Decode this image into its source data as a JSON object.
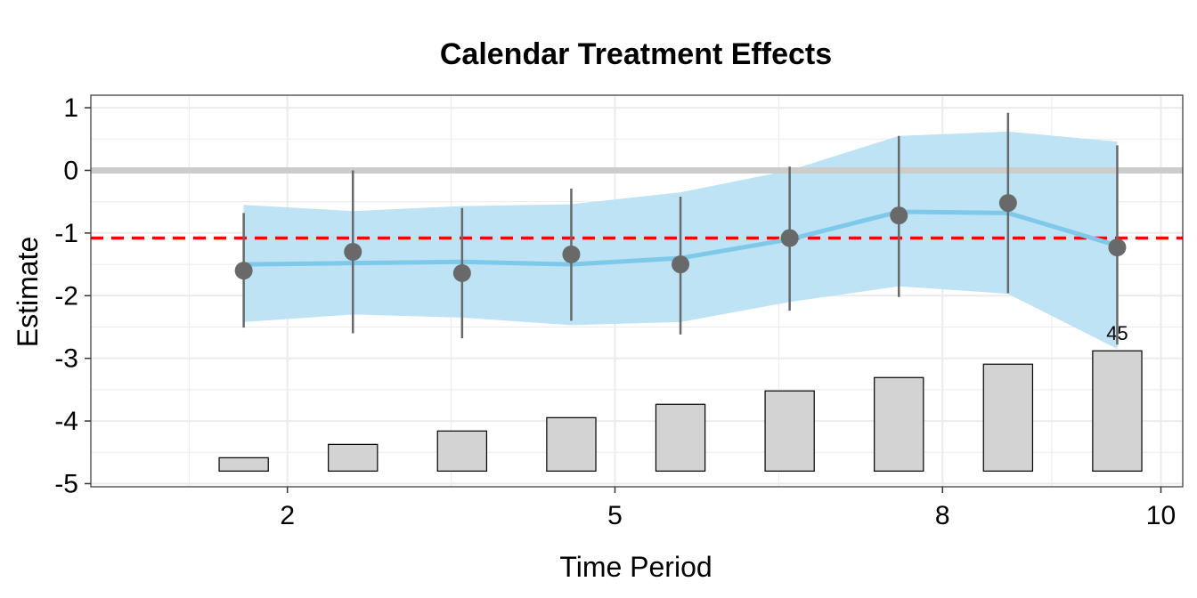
{
  "chart_data": {
    "type": "line",
    "title": "Calendar Treatment Effects",
    "xlabel": "Time Period",
    "ylabel": "Estimate",
    "xlim": [
      0.2,
      10.2
    ],
    "ylim": [
      -5.05,
      1.2
    ],
    "x_ticks": [
      2,
      5,
      8,
      10
    ],
    "x_tick_labels": [
      "2",
      "5",
      "8",
      "10"
    ],
    "y_ticks": [
      -5,
      -4,
      -3,
      -2,
      -1,
      0,
      1
    ],
    "y_tick_labels": [
      "-5",
      "-4",
      "-3",
      "-2",
      "-1",
      "0",
      "1"
    ],
    "grid": true,
    "reference_line_y": 0,
    "average_effect_line_y": -1.08,
    "series": [
      {
        "type": "line",
        "x": [
          1.6,
          2.6,
          3.6,
          4.6,
          5.6,
          6.6,
          7.6,
          8.6,
          9.6
        ],
        "values": [
          -1.5,
          -1.48,
          -1.46,
          -1.5,
          -1.4,
          -1.1,
          -0.66,
          -0.68,
          -1.2
        ]
      },
      {
        "type": "band",
        "x": [
          1.6,
          2.6,
          3.6,
          4.6,
          5.6,
          6.6,
          7.6,
          8.6,
          9.6
        ],
        "lower": [
          -2.42,
          -2.3,
          -2.35,
          -2.47,
          -2.42,
          -2.1,
          -1.85,
          -1.97,
          -2.85
        ],
        "upper": [
          -0.55,
          -0.65,
          -0.57,
          -0.54,
          -0.35,
          0.0,
          0.55,
          0.62,
          0.46
        ]
      },
      {
        "type": "scatter",
        "x": [
          1.6,
          2.6,
          3.6,
          4.6,
          5.6,
          6.6,
          7.6,
          8.6,
          9.6
        ],
        "values": [
          -1.6,
          -1.3,
          -1.64,
          -1.34,
          -1.5,
          -1.08,
          -0.72,
          -0.52,
          -1.23
        ],
        "lower": [
          -2.51,
          -2.6,
          -2.68,
          -2.4,
          -2.62,
          -2.24,
          -2.02,
          -1.96,
          -2.78
        ],
        "upper": [
          -0.68,
          0.0,
          -0.6,
          -0.29,
          -0.42,
          0.06,
          0.55,
          0.92,
          0.4
        ]
      }
    ],
    "count_bars": {
      "x": [
        1.6,
        2.6,
        3.6,
        4.6,
        5.6,
        6.6,
        7.6,
        8.6,
        9.6
      ],
      "counts": [
        5,
        10,
        15,
        20,
        25,
        30,
        35,
        40,
        45
      ],
      "labeled_value": "45"
    },
    "colors": {
      "line": "#7ec8ea",
      "band": "#bde3f4",
      "point": "#696969",
      "errorbar": "#696969",
      "reference_line": "#cccccc",
      "average_line": "#ff0000",
      "bar_fill": "#d3d3d3",
      "bar_stroke": "#000000",
      "grid": "#ebebeb"
    }
  }
}
